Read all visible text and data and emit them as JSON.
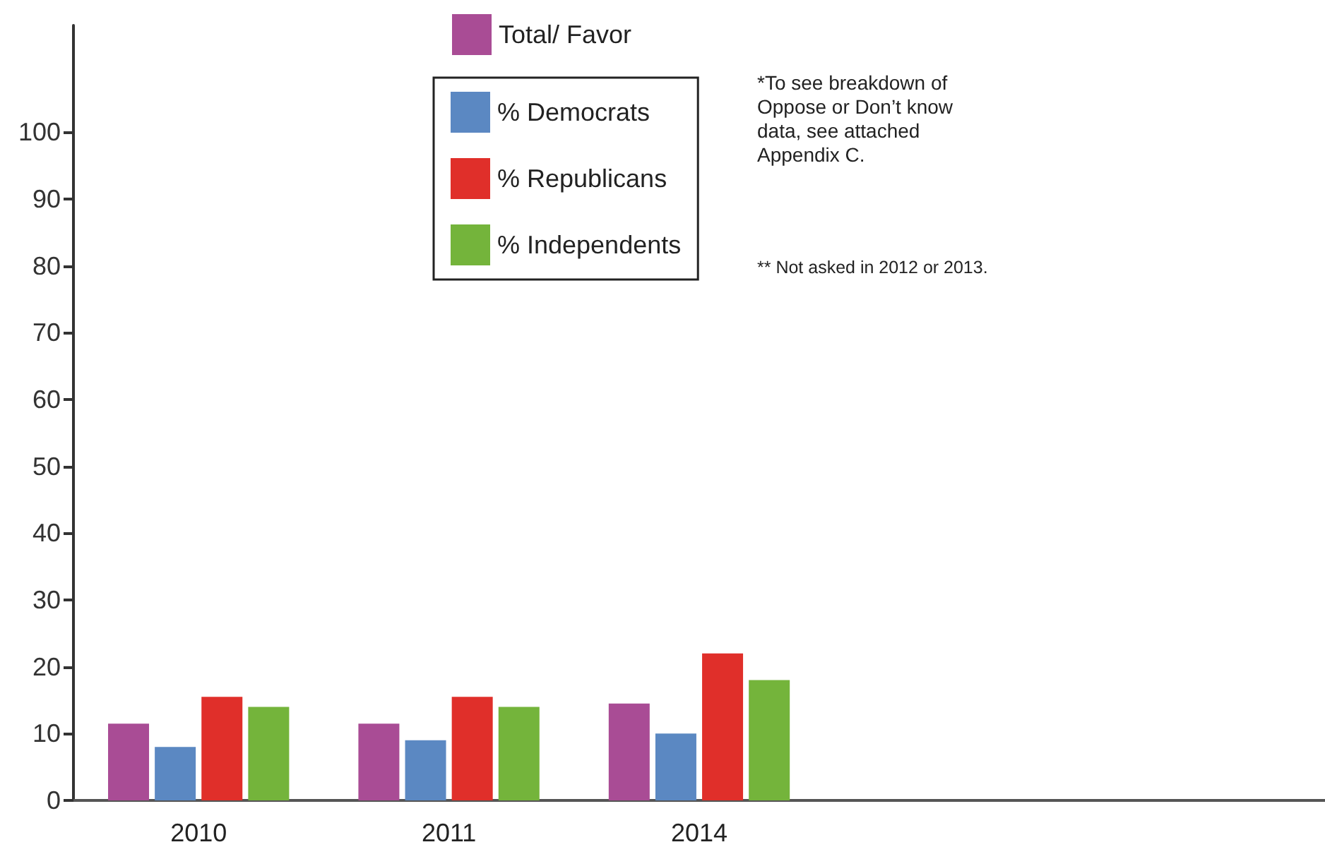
{
  "chart_data": {
    "type": "bar",
    "categories": [
      "2010",
      "2011",
      "2014",
      null,
      null
    ],
    "series": [
      {
        "name": "Total/ Favor",
        "color": "#a94c95",
        "values": [
          11.5,
          11.5,
          14.5,
          null,
          null
        ]
      },
      {
        "name": "% Democrats",
        "color": "#5b88c2",
        "values": [
          8,
          9,
          10,
          null,
          null
        ]
      },
      {
        "name": "% Republicans",
        "color": "#e02f2a",
        "values": [
          15.5,
          15.5,
          22,
          null,
          null
        ]
      },
      {
        "name": "% Independents",
        "color": "#74b43b",
        "values": [
          14,
          14,
          18,
          null,
          null
        ]
      }
    ],
    "ylim": [
      0,
      116
    ],
    "yticks": [
      0,
      10,
      20,
      30,
      40,
      50,
      60,
      70,
      80,
      90,
      100
    ],
    "legend": "top",
    "annotations": [
      "*To see breakdown of Oppose or Don’t know data, see attached Appendix C.",
      "** Not asked in 2012 or 2013."
    ]
  }
}
